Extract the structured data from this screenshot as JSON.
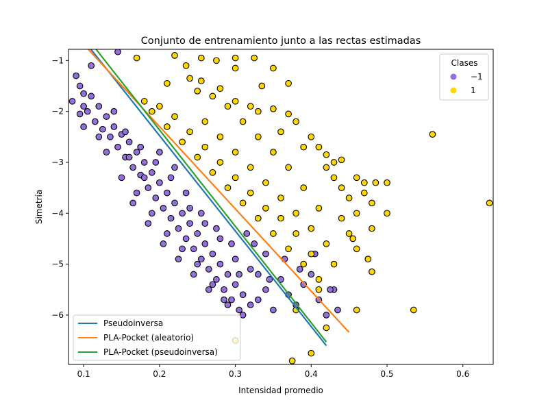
{
  "chart_data": {
    "type": "scatter",
    "title": "Conjunto de entrenamiento junto a las rectas estimadas",
    "xlabel": "Intensidad promedio",
    "ylabel": "Simetría",
    "xlim": [
      0.08,
      0.64
    ],
    "ylim": [
      -6.97,
      -0.78
    ],
    "xticks": [
      0.1,
      0.2,
      0.3,
      0.4,
      0.5,
      0.6
    ],
    "xtick_labels": [
      "0.1",
      "0.2",
      "0.3",
      "0.4",
      "0.5",
      "0.6"
    ],
    "yticks": [
      -1,
      -2,
      -3,
      -4,
      -5,
      -6
    ],
    "ytick_labels": [
      "−1",
      "−2",
      "−3",
      "−4",
      "−5",
      "−6"
    ],
    "grid": false,
    "classes_legend": {
      "title": "Clases",
      "placement": "top-right",
      "entries": [
        {
          "label": "−1",
          "color": "#9370DB"
        },
        {
          "label": "1",
          "color": "#FFD700"
        }
      ]
    },
    "lines_legend": {
      "placement": "bottom-left",
      "entries": [
        {
          "label": "Pseudoinversa",
          "color": "#1f77b4"
        },
        {
          "label": "PLA-Pocket (aleatorio)",
          "color": "#ff7f0e"
        },
        {
          "label": "PLA-Pocket (pseudoinversa)",
          "color": "#2ca02c"
        }
      ]
    },
    "lines": [
      {
        "name": "Pseudoinversa",
        "color": "#1f77b4",
        "points": [
          [
            0.1,
            -0.6
          ],
          [
            0.42,
            -6.6
          ]
        ]
      },
      {
        "name": "PLA-Pocket (aleatorio)",
        "color": "#ff7f0e",
        "points": [
          [
            0.1,
            -0.68
          ],
          [
            0.45,
            -6.34
          ]
        ]
      },
      {
        "name": "PLA-Pocket (pseudoinversa)",
        "color": "#2ca02c",
        "points": [
          [
            0.1,
            -0.47
          ],
          [
            0.42,
            -6.53
          ]
        ]
      }
    ],
    "series": [
      {
        "name": "−1",
        "color": "#9370DB",
        "points": [
          [
            0.085,
            -1.8
          ],
          [
            0.09,
            -1.3
          ],
          [
            0.095,
            -1.5
          ],
          [
            0.1,
            -1.65
          ],
          [
            0.105,
            -2.0
          ],
          [
            0.11,
            -1.7
          ],
          [
            0.115,
            -2.2
          ],
          [
            0.12,
            -1.9
          ],
          [
            0.125,
            -2.35
          ],
          [
            0.13,
            -2.1
          ],
          [
            0.135,
            -2.5
          ],
          [
            0.14,
            -2.3
          ],
          [
            0.145,
            -2.7
          ],
          [
            0.15,
            -2.45
          ],
          [
            0.155,
            -2.9
          ],
          [
            0.16,
            -2.6
          ],
          [
            0.165,
            -3.1
          ],
          [
            0.17,
            -2.8
          ],
          [
            0.175,
            -3.25
          ],
          [
            0.18,
            -3.0
          ],
          [
            0.185,
            -3.5
          ],
          [
            0.19,
            -3.2
          ],
          [
            0.195,
            -3.7
          ],
          [
            0.2,
            -3.4
          ],
          [
            0.205,
            -3.9
          ],
          [
            0.21,
            -3.6
          ],
          [
            0.215,
            -4.1
          ],
          [
            0.22,
            -3.8
          ],
          [
            0.225,
            -4.3
          ],
          [
            0.23,
            -4.0
          ],
          [
            0.235,
            -4.5
          ],
          [
            0.24,
            -4.2
          ],
          [
            0.245,
            -4.7
          ],
          [
            0.25,
            -4.4
          ],
          [
            0.255,
            -4.9
          ],
          [
            0.26,
            -4.6
          ],
          [
            0.265,
            -5.1
          ],
          [
            0.27,
            -4.8
          ],
          [
            0.275,
            -5.3
          ],
          [
            0.28,
            -5.0
          ],
          [
            0.285,
            -5.5
          ],
          [
            0.29,
            -5.2
          ],
          [
            0.295,
            -5.7
          ],
          [
            0.3,
            -5.4
          ],
          [
            0.305,
            -5.9
          ],
          [
            0.31,
            -5.6
          ],
          [
            0.32,
            -5.8
          ],
          [
            0.33,
            -5.7
          ],
          [
            0.34,
            -5.5
          ],
          [
            0.35,
            -5.9
          ],
          [
            0.36,
            -5.3
          ],
          [
            0.37,
            -5.6
          ],
          [
            0.38,
            -5.8
          ],
          [
            0.39,
            -5.4
          ],
          [
            0.4,
            -5.2
          ],
          [
            0.41,
            -5.7
          ],
          [
            0.42,
            -6.0
          ],
          [
            0.43,
            -5.5
          ],
          [
            0.12,
            -2.5
          ],
          [
            0.14,
            -2.0
          ],
          [
            0.16,
            -2.9
          ],
          [
            0.18,
            -3.3
          ],
          [
            0.2,
            -2.8
          ],
          [
            0.22,
            -3.1
          ],
          [
            0.24,
            -3.9
          ],
          [
            0.26,
            -4.2
          ],
          [
            0.28,
            -4.5
          ],
          [
            0.3,
            -4.9
          ],
          [
            0.32,
            -5.1
          ],
          [
            0.34,
            -4.8
          ],
          [
            0.15,
            -3.3
          ],
          [
            0.17,
            -3.6
          ],
          [
            0.19,
            -4.0
          ],
          [
            0.21,
            -4.4
          ],
          [
            0.23,
            -4.7
          ],
          [
            0.25,
            -5.0
          ],
          [
            0.27,
            -5.4
          ],
          [
            0.29,
            -5.8
          ],
          [
            0.31,
            -6.0
          ],
          [
            0.33,
            -5.2
          ],
          [
            0.13,
            -2.8
          ],
          [
            0.155,
            -2.4
          ],
          [
            0.175,
            -2.7
          ],
          [
            0.195,
            -3.0
          ],
          [
            0.215,
            -3.3
          ],
          [
            0.235,
            -3.6
          ],
          [
            0.255,
            -4.0
          ],
          [
            0.275,
            -4.3
          ],
          [
            0.295,
            -4.6
          ],
          [
            0.315,
            -4.4
          ],
          [
            0.165,
            -3.8
          ],
          [
            0.185,
            -4.2
          ],
          [
            0.205,
            -4.6
          ],
          [
            0.225,
            -4.9
          ],
          [
            0.245,
            -5.2
          ],
          [
            0.265,
            -5.5
          ],
          [
            0.285,
            -5.7
          ],
          [
            0.305,
            -5.2
          ],
          [
            0.325,
            -4.6
          ],
          [
            0.345,
            -5.3
          ],
          [
            0.365,
            -4.9
          ],
          [
            0.385,
            -5.1
          ],
          [
            0.405,
            -4.8
          ],
          [
            0.425,
            -5.5
          ],
          [
            0.435,
            -5.9
          ],
          [
            0.145,
            -0.83
          ],
          [
            0.11,
            -1.1
          ],
          [
            0.1,
            -1.9
          ],
          [
            0.095,
            -2.05
          ],
          [
            0.1,
            -2.3
          ]
        ]
      },
      {
        "name": "1",
        "color": "#FFD700",
        "points": [
          [
            0.17,
            -0.95
          ],
          [
            0.22,
            -0.9
          ],
          [
            0.255,
            -0.95
          ],
          [
            0.275,
            -1.0
          ],
          [
            0.3,
            -0.95
          ],
          [
            0.325,
            -0.95
          ],
          [
            0.35,
            -1.15
          ],
          [
            0.235,
            -1.1
          ],
          [
            0.3,
            -1.15
          ],
          [
            0.255,
            -1.4
          ],
          [
            0.21,
            -1.45
          ],
          [
            0.24,
            -1.35
          ],
          [
            0.28,
            -1.55
          ],
          [
            0.335,
            -1.5
          ],
          [
            0.37,
            -1.45
          ],
          [
            0.3,
            -1.8
          ],
          [
            0.32,
            -1.9
          ],
          [
            0.35,
            -1.95
          ],
          [
            0.37,
            -2.05
          ],
          [
            0.38,
            -2.2
          ],
          [
            0.4,
            -2.5
          ],
          [
            0.41,
            -2.7
          ],
          [
            0.42,
            -2.85
          ],
          [
            0.43,
            -3.0
          ],
          [
            0.44,
            -2.95
          ],
          [
            0.46,
            -3.3
          ],
          [
            0.47,
            -3.6
          ],
          [
            0.48,
            -3.8
          ],
          [
            0.5,
            -3.4
          ],
          [
            0.47,
            -3.4
          ],
          [
            0.45,
            -4.4
          ],
          [
            0.46,
            -4.7
          ],
          [
            0.475,
            -4.9
          ],
          [
            0.48,
            -4.3
          ],
          [
            0.5,
            -4.0
          ],
          [
            0.48,
            -5.15
          ],
          [
            0.46,
            -5.9
          ],
          [
            0.42,
            -6.25
          ],
          [
            0.4,
            -6.75
          ],
          [
            0.56,
            -2.45
          ],
          [
            0.635,
            -3.8
          ],
          [
            0.535,
            -5.9
          ],
          [
            0.375,
            -6.9
          ],
          [
            0.3,
            -6.5
          ],
          [
            0.38,
            -5.9
          ],
          [
            0.41,
            -5.5
          ],
          [
            0.43,
            -5.0
          ],
          [
            0.4,
            -4.8
          ],
          [
            0.38,
            -4.4
          ],
          [
            0.36,
            -4.1
          ],
          [
            0.34,
            -3.9
          ],
          [
            0.32,
            -3.6
          ],
          [
            0.3,
            -3.3
          ],
          [
            0.28,
            -3.0
          ],
          [
            0.26,
            -2.7
          ],
          [
            0.24,
            -2.4
          ],
          [
            0.22,
            -2.1
          ],
          [
            0.2,
            -1.9
          ],
          [
            0.18,
            -1.8
          ],
          [
            0.19,
            -2.0
          ],
          [
            0.21,
            -2.3
          ],
          [
            0.23,
            -2.6
          ],
          [
            0.25,
            -2.9
          ],
          [
            0.27,
            -3.2
          ],
          [
            0.29,
            -3.5
          ],
          [
            0.31,
            -3.8
          ],
          [
            0.33,
            -4.1
          ],
          [
            0.35,
            -4.4
          ],
          [
            0.37,
            -4.7
          ],
          [
            0.39,
            -5.0
          ],
          [
            0.41,
            -5.3
          ],
          [
            0.26,
            -2.2
          ],
          [
            0.28,
            -2.5
          ],
          [
            0.3,
            -2.8
          ],
          [
            0.32,
            -3.1
          ],
          [
            0.34,
            -3.4
          ],
          [
            0.36,
            -3.7
          ],
          [
            0.38,
            -4.0
          ],
          [
            0.4,
            -4.3
          ],
          [
            0.42,
            -4.6
          ],
          [
            0.44,
            -4.1
          ],
          [
            0.45,
            -3.7
          ],
          [
            0.43,
            -3.3
          ],
          [
            0.41,
            -3.9
          ],
          [
            0.39,
            -3.5
          ],
          [
            0.37,
            -3.1
          ],
          [
            0.35,
            -2.8
          ],
          [
            0.33,
            -2.5
          ],
          [
            0.31,
            -2.2
          ],
          [
            0.29,
            -1.9
          ],
          [
            0.27,
            -1.7
          ],
          [
            0.25,
            -1.6
          ],
          [
            0.33,
            -2.0
          ],
          [
            0.36,
            -2.4
          ],
          [
            0.39,
            -2.7
          ],
          [
            0.42,
            -3.1
          ],
          [
            0.44,
            -3.5
          ],
          [
            0.46,
            -4.0
          ],
          [
            0.485,
            -3.4
          ],
          [
            0.455,
            -4.5
          ]
        ]
      }
    ]
  }
}
